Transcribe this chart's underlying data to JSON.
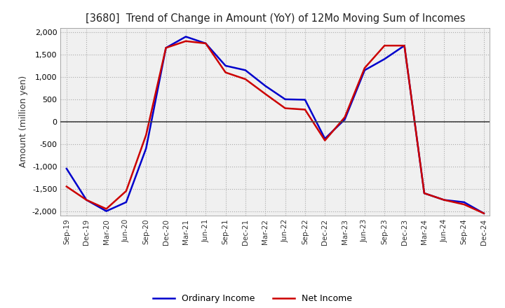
{
  "title": "[3680]  Trend of Change in Amount (YoY) of 12Mo Moving Sum of Incomes",
  "ylabel": "Amount (million yen)",
  "ylim": [
    -2100,
    2100
  ],
  "yticks": [
    -2000,
    -1500,
    -1000,
    -500,
    0,
    500,
    1000,
    1500,
    2000
  ],
  "x_labels": [
    "Sep-19",
    "Dec-19",
    "Mar-20",
    "Jun-20",
    "Sep-20",
    "Dec-20",
    "Mar-21",
    "Jun-21",
    "Sep-21",
    "Dec-21",
    "Mar-22",
    "Jun-22",
    "Sep-22",
    "Dec-22",
    "Mar-23",
    "Jun-23",
    "Sep-23",
    "Dec-23",
    "Mar-24",
    "Jun-24",
    "Sep-24",
    "Dec-24"
  ],
  "ordinary_income": [
    -1050,
    -1750,
    -2000,
    -1800,
    -600,
    1650,
    1900,
    1750,
    1250,
    1150,
    800,
    500,
    490,
    -380,
    50,
    1150,
    1400,
    1700,
    -1600,
    -1750,
    -1800,
    -2050
  ],
  "net_income": [
    -1450,
    -1750,
    -1950,
    -1550,
    -300,
    1650,
    1800,
    1750,
    1100,
    950,
    620,
    300,
    270,
    -420,
    100,
    1200,
    1700,
    1700,
    -1600,
    -1750,
    -1850,
    -2050
  ],
  "ordinary_color": "#0000cc",
  "net_color": "#cc0000",
  "line_width": 1.8,
  "grid_color": "#aaaaaa",
  "plot_bg_color": "#f0f0f0",
  "background_color": "#ffffff",
  "legend_ordinary": "Ordinary Income",
  "legend_net": "Net Income"
}
